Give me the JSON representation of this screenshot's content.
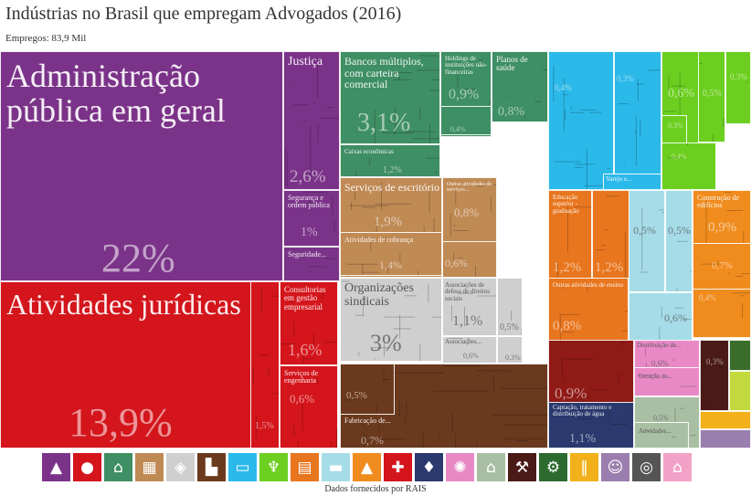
{
  "title": "Indústrias no Brasil que empregam Advogados (2016)",
  "subtitle": "Empregos: 83,9 Mil",
  "source": "Dados fornecidos por RAIS",
  "chart_data": {
    "type": "treemap",
    "title": "Indústrias no Brasil que empregam Advogados (2016)",
    "subtitle": "Empregos: 83,9 Mil",
    "tiles": [
      {
        "id": "adm",
        "label": "Administração pública em geral",
        "value": "22%",
        "color": "#7b3389"
      },
      {
        "id": "just",
        "label": "Justiça",
        "value": "2,6%",
        "color": "#7b3389"
      },
      {
        "id": "seg",
        "label": "Segurança e ordem pública",
        "value": "1%",
        "color": "#7b3389"
      },
      {
        "id": "segur",
        "label": "Seguridade...",
        "value": "",
        "color": "#7b3389"
      },
      {
        "id": "jur",
        "label": "Atividades jurídicas",
        "value": "13,9%",
        "color": "#d4151c"
      },
      {
        "id": "cons",
        "label": "Consultorias em gestão empresarial",
        "value": "1,6%",
        "color": "#d4151c"
      },
      {
        "id": "eng",
        "label": "Serviços de engenharia",
        "value": "0,6%",
        "color": "#d4151c"
      },
      {
        "id": "red15",
        "label": "",
        "value": "1,5%",
        "color": "#d4151c"
      },
      {
        "id": "bancos",
        "label": "Bancos múltiplos, com carteira comercial",
        "value": "3,1%",
        "color": "#3f8f64"
      },
      {
        "id": "hold",
        "label": "Holdings de instituições não-financeiras",
        "value": "0,9%",
        "color": "#3f8f64"
      },
      {
        "id": "planos",
        "label": "Planos de saúde",
        "value": "0,8%",
        "color": "#3f8f64"
      },
      {
        "id": "caixas",
        "label": "Caixas econômicas",
        "value": "1,2%",
        "color": "#3f8f64"
      },
      {
        "id": "green04",
        "label": "",
        "value": "0,4%",
        "color": "#3f8f64"
      },
      {
        "id": "escr",
        "label": "Serviços de escritório",
        "value": "1,9%",
        "color": "#c08a55"
      },
      {
        "id": "outrasserv",
        "label": "Outras atividades de serviços...",
        "value": "0,8%",
        "color": "#c08a55"
      },
      {
        "id": "cobr",
        "label": "Atividades de cobrança",
        "value": "1,4%",
        "color": "#c08a55"
      },
      {
        "id": "brown06",
        "label": "",
        "value": "0,6%",
        "color": "#c08a55"
      },
      {
        "id": "sind",
        "label": "Organizações sindicais",
        "value": "3%",
        "color": "#cfcfcf"
      },
      {
        "id": "assocdir",
        "label": "Associações de defesa de direitos sociais",
        "value": "1,1%",
        "color": "#cfcfcf"
      },
      {
        "id": "assoc",
        "label": "Associações...",
        "value": "0,6%",
        "color": "#cfcfcf"
      },
      {
        "id": "grey05",
        "label": "",
        "value": "0,5%",
        "color": "#cfcfcf"
      },
      {
        "id": "grey03",
        "label": "",
        "value": "0,3%",
        "color": "#cfcfcf"
      },
      {
        "id": "blue04",
        "label": "",
        "value": "0,4%",
        "color": "#2bb9ea"
      },
      {
        "id": "blue03",
        "label": "",
        "value": "0,3%",
        "color": "#2bb9ea"
      },
      {
        "id": "varejo",
        "label": "Varejo e...",
        "value": "",
        "color": "#2bb9ea"
      },
      {
        "id": "lime06",
        "label": "",
        "value": "0,6%",
        "color": "#6ccf20"
      },
      {
        "id": "lime05",
        "label": "",
        "value": "0,5%",
        "color": "#6ccf20"
      },
      {
        "id": "lime03a",
        "label": "",
        "value": "0,3%",
        "color": "#6ccf20"
      },
      {
        "id": "lime03b",
        "label": "",
        "value": "0,3%",
        "color": "#6ccf20"
      },
      {
        "id": "lime04",
        "label": "",
        "value": "0,4%",
        "color": "#6ccf20"
      },
      {
        "id": "edsup",
        "label": "Educação superior - graduação",
        "value": "1,2%",
        "color": "#e8761f"
      },
      {
        "id": "or12",
        "label": "",
        "value": "1,2%",
        "color": "#e8761f"
      },
      {
        "id": "outrasens",
        "label": "Outras atividades de ensino",
        "value": "0,8%",
        "color": "#e8761f"
      },
      {
        "id": "lb05a",
        "label": "",
        "value": "0,5%",
        "color": "#a6dce8"
      },
      {
        "id": "lb05b",
        "label": "",
        "value": "0,5%",
        "color": "#a6dce8"
      },
      {
        "id": "lb06",
        "label": "",
        "value": "0,6%",
        "color": "#a6dce8"
      },
      {
        "id": "constr",
        "label": "Construção de edifícios",
        "value": "0,9%",
        "color": "#f08c1e"
      },
      {
        "id": "or07",
        "label": "",
        "value": "0,7%",
        "color": "#f08c1e"
      },
      {
        "id": "or04",
        "label": "",
        "value": "0,4%",
        "color": "#f08c1e"
      },
      {
        "id": "fabr",
        "label": "Fabricação de...",
        "value": "0,7%",
        "color": "#6b3a1e"
      },
      {
        "id": "db05",
        "label": "",
        "value": "0,5%",
        "color": "#6b3a1e"
      },
      {
        "id": "mar09",
        "label": "",
        "value": "0,9%",
        "color": "#8f1a16"
      },
      {
        "id": "capt",
        "label": "Captação, tratamento e distribuição de água",
        "value": "1,1%",
        "color": "#2a3a6e"
      },
      {
        "id": "distr",
        "label": "Distribuição de...",
        "value": "0,6%",
        "color": "#e889c6"
      },
      {
        "id": "ger",
        "label": "Geração de...",
        "value": "",
        "color": "#e889c6"
      },
      {
        "id": "sage05",
        "label": "",
        "value": "0,5%",
        "color": "#a9bfa3"
      },
      {
        "id": "ativ",
        "label": "Atividades...",
        "value": "",
        "color": "#a9bfa3"
      },
      {
        "id": "dkred03",
        "label": "",
        "value": "0,3%",
        "color": "#4a1a17"
      }
    ]
  },
  "icon_bar": [
    {
      "name": "government-icon",
      "glyph": "▲",
      "color": "#7b3389"
    },
    {
      "name": "people-icon",
      "glyph": "●",
      "color": "#d4151c"
    },
    {
      "name": "bank-icon",
      "glyph": "⌂",
      "color": "#3f8f64"
    },
    {
      "name": "office-icon",
      "glyph": "▦",
      "color": "#c08a55"
    },
    {
      "name": "box-icon",
      "glyph": "◈",
      "color": "#cfcfcf"
    },
    {
      "name": "factory-icon",
      "glyph": "▙",
      "color": "#6b3a1e"
    },
    {
      "name": "store-icon",
      "glyph": "▭",
      "color": "#2bb9ea"
    },
    {
      "name": "tower-icon",
      "glyph": "♆",
      "color": "#6ccf20"
    },
    {
      "name": "book-icon",
      "glyph": "▤",
      "color": "#e8761f"
    },
    {
      "name": "truck-icon",
      "glyph": "▬",
      "color": "#a6dce8"
    },
    {
      "name": "cone-icon",
      "glyph": "▲",
      "color": "#f08c1e"
    },
    {
      "name": "health-cross-icon",
      "glyph": "✚",
      "color": "#d4151c"
    },
    {
      "name": "water-drop-icon",
      "glyph": "♦",
      "color": "#2a3a6e"
    },
    {
      "name": "energy-icon",
      "glyph": "✺",
      "color": "#e889c6"
    },
    {
      "name": "house-money-icon",
      "glyph": "⌂",
      "color": "#a9bfa3"
    },
    {
      "name": "mining-pick-icon",
      "glyph": "⚒",
      "color": "#4a1a17"
    },
    {
      "name": "tractor-icon",
      "glyph": "⚙",
      "color": "#2d6a2f"
    },
    {
      "name": "restaurant-icon",
      "glyph": "‖",
      "color": "#f2b11a"
    },
    {
      "name": "theater-masks-icon",
      "glyph": "☺",
      "color": "#9a7fae"
    },
    {
      "name": "globe-icon",
      "glyph": "◎",
      "color": "#555555"
    },
    {
      "name": "home-icon",
      "glyph": "⌂",
      "color": "#f3a2c7"
    }
  ]
}
